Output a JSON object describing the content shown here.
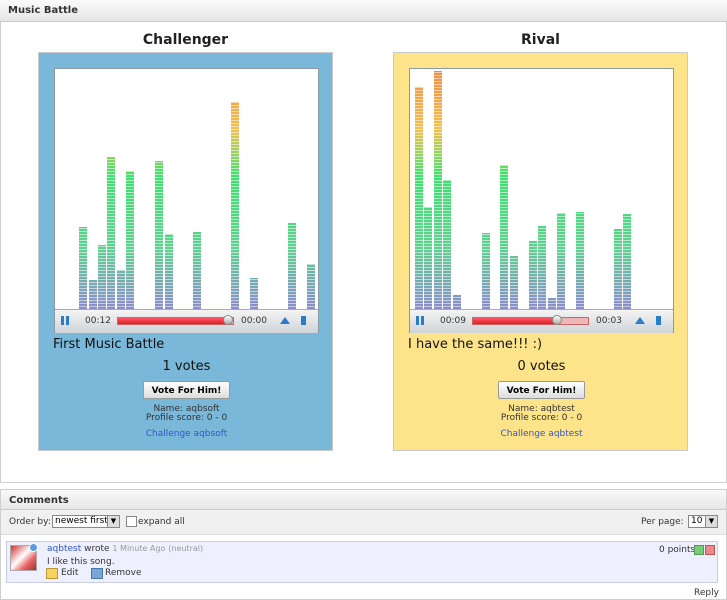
{
  "header": {
    "title": "Music Battle"
  },
  "contestants": [
    {
      "role": "Challenger",
      "elapsed": "00:12",
      "remaining": "00:00",
      "song_title": "First Music Battle",
      "votes": "1 votes",
      "vote_button": "Vote For Him!",
      "name": "Name: aqbsoft",
      "profile_score": "Profile score: 0 - 0",
      "challenge_link": "Challenge aqbsoft"
    },
    {
      "role": "Rival",
      "elapsed": "00:09",
      "remaining": "00:03",
      "song_title": "I have the same!!! :)",
      "votes": "0 votes",
      "vote_button": "Vote For Him!",
      "name": "Name: aqbtest",
      "profile_score": "Profile score: 0 - 0",
      "challenge_link": "Challenge aqbtest"
    }
  ],
  "comments": {
    "title": "Comments",
    "order_label": "Order by:",
    "order_value": "newest first",
    "expand_label": "expand all",
    "per_page_label": "Per page:",
    "per_page_value": "10",
    "items": [
      {
        "author": "aqbtest",
        "verb": "wrote",
        "time": "1 Minute Ago",
        "mood": "(neutral)",
        "points": "0 points",
        "text": "I like this song.",
        "edit": "Edit",
        "remove": "Remove"
      }
    ],
    "reply": "Reply"
  }
}
